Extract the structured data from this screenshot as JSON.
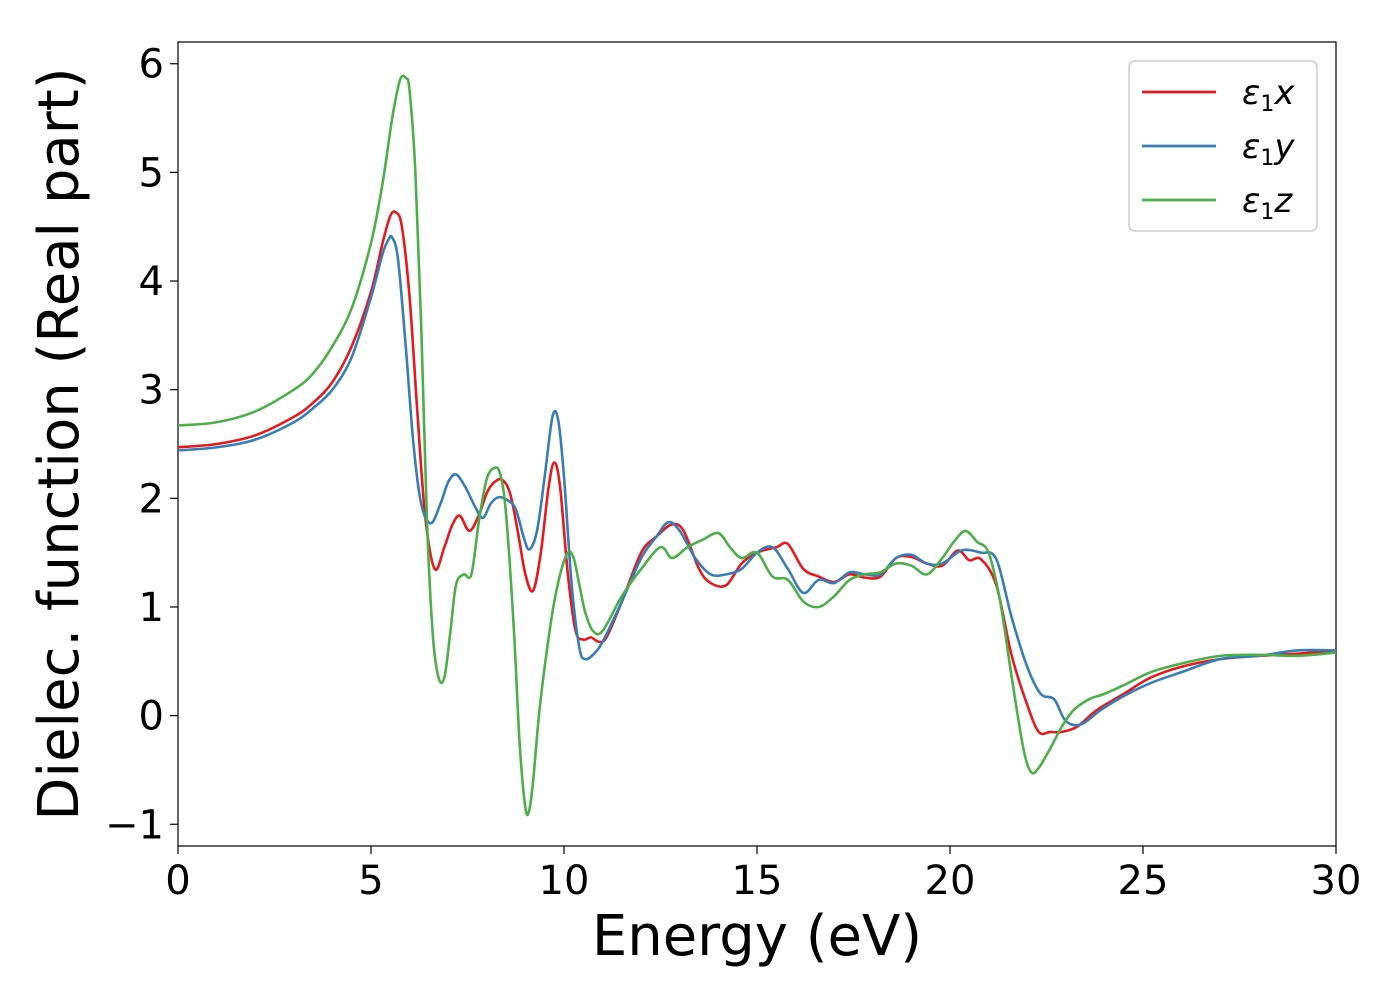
{
  "chart_data": {
    "type": "line",
    "title": "",
    "xlabel": "Energy (eV)",
    "ylabel": "Dielec. function (Real part)",
    "xlim": [
      0,
      30
    ],
    "ylim": [
      -1.2,
      6.2
    ],
    "grid": false,
    "legend_position": "top-right",
    "xticks": [
      0,
      5,
      10,
      15,
      20,
      25,
      30
    ],
    "xtick_labels": [
      "0",
      "5",
      "10",
      "15",
      "20",
      "25",
      "30"
    ],
    "yticks": [
      -1,
      0,
      1,
      2,
      3,
      4,
      5,
      6
    ],
    "ytick_labels": [
      "−1",
      "0",
      "1",
      "2",
      "3",
      "4",
      "5",
      "6"
    ],
    "series": [
      {
        "name": "ε₁x",
        "symbol": "ε",
        "sub": "1",
        "suffix": "x",
        "color": "#e41a1c",
        "x": [
          0,
          1,
          2,
          3,
          3.5,
          4,
          4.5,
          5,
          5.3,
          5.5,
          5.65,
          5.8,
          6.0,
          6.2,
          6.4,
          6.65,
          6.9,
          7.1,
          7.3,
          7.55,
          7.8,
          8.0,
          8.2,
          8.4,
          8.6,
          8.8,
          9.0,
          9.2,
          9.4,
          9.6,
          9.75,
          9.9,
          10.1,
          10.3,
          10.5,
          10.7,
          10.9,
          11.1,
          11.5,
          12.0,
          12.4,
          12.8,
          13.1,
          13.5,
          13.8,
          14.2,
          14.6,
          15.0,
          15.5,
          15.8,
          16.2,
          16.6,
          17.0,
          17.4,
          17.8,
          18.2,
          18.6,
          19.0,
          19.4,
          19.8,
          20.2,
          20.5,
          20.8,
          21.2,
          21.6,
          22.0,
          22.3,
          22.6,
          22.9,
          23.3,
          23.8,
          24.5,
          25.2,
          26.0,
          27.0,
          28.0,
          29.0,
          30.0
        ],
        "values": [
          2.47,
          2.5,
          2.58,
          2.75,
          2.88,
          3.07,
          3.4,
          3.9,
          4.35,
          4.6,
          4.63,
          4.5,
          3.85,
          2.8,
          1.85,
          1.35,
          1.55,
          1.75,
          1.84,
          1.7,
          1.85,
          2.05,
          2.15,
          2.17,
          2.05,
          1.7,
          1.3,
          1.15,
          1.5,
          2.1,
          2.33,
          2.1,
          1.3,
          0.78,
          0.7,
          0.72,
          0.68,
          0.72,
          1.05,
          1.5,
          1.65,
          1.76,
          1.7,
          1.35,
          1.22,
          1.2,
          1.4,
          1.5,
          1.55,
          1.58,
          1.35,
          1.28,
          1.23,
          1.3,
          1.27,
          1.28,
          1.45,
          1.46,
          1.4,
          1.38,
          1.52,
          1.43,
          1.44,
          1.2,
          0.55,
          0.1,
          -0.15,
          -0.15,
          -0.15,
          -0.1,
          0.05,
          0.2,
          0.35,
          0.45,
          0.52,
          0.55,
          0.57,
          0.6
        ]
      },
      {
        "name": "ε₁y",
        "symbol": "ε",
        "sub": "1",
        "suffix": "y",
        "color": "#377eb8",
        "x": [
          0,
          1,
          2,
          3,
          3.5,
          4,
          4.5,
          5,
          5.3,
          5.45,
          5.55,
          5.7,
          5.9,
          6.1,
          6.3,
          6.55,
          6.8,
          7.0,
          7.2,
          7.45,
          7.7,
          7.9,
          8.1,
          8.3,
          8.55,
          8.75,
          8.95,
          9.1,
          9.3,
          9.5,
          9.7,
          9.85,
          10.0,
          10.2,
          10.4,
          10.55,
          10.75,
          11.0,
          11.5,
          12.0,
          12.4,
          12.7,
          13.0,
          13.4,
          13.8,
          14.2,
          14.6,
          15.0,
          15.4,
          15.8,
          16.2,
          16.6,
          17.0,
          17.4,
          17.8,
          18.2,
          18.6,
          19.0,
          19.4,
          19.8,
          20.3,
          20.8,
          21.2,
          21.6,
          22.0,
          22.35,
          22.7,
          23.0,
          23.4,
          23.9,
          24.5,
          25.2,
          26.0,
          27.0,
          28.0,
          29.0,
          30.0
        ],
        "values": [
          2.44,
          2.47,
          2.54,
          2.7,
          2.83,
          3.0,
          3.3,
          3.85,
          4.25,
          4.38,
          4.4,
          4.2,
          3.4,
          2.5,
          1.95,
          1.77,
          1.95,
          2.15,
          2.22,
          2.1,
          1.92,
          1.82,
          1.95,
          2.01,
          1.98,
          1.9,
          1.65,
          1.53,
          1.7,
          2.2,
          2.75,
          2.72,
          2.2,
          1.2,
          0.62,
          0.52,
          0.56,
          0.68,
          1.05,
          1.45,
          1.65,
          1.78,
          1.7,
          1.45,
          1.3,
          1.3,
          1.35,
          1.5,
          1.55,
          1.35,
          1.13,
          1.25,
          1.22,
          1.32,
          1.3,
          1.3,
          1.45,
          1.48,
          1.4,
          1.4,
          1.52,
          1.5,
          1.44,
          0.9,
          0.45,
          0.2,
          0.15,
          -0.05,
          -0.08,
          0.05,
          0.18,
          0.3,
          0.4,
          0.52,
          0.55,
          0.6,
          0.6
        ]
      },
      {
        "name": "ε₁z",
        "symbol": "ε",
        "sub": "1",
        "suffix": "z",
        "color": "#4daf4a",
        "x": [
          0,
          1,
          2,
          3,
          3.5,
          4,
          4.5,
          5,
          5.3,
          5.55,
          5.75,
          5.9,
          6.0,
          6.15,
          6.3,
          6.45,
          6.6,
          6.75,
          6.9,
          7.05,
          7.2,
          7.4,
          7.6,
          7.8,
          8.0,
          8.2,
          8.35,
          8.5,
          8.7,
          8.85,
          9.0,
          9.1,
          9.2,
          9.35,
          9.5,
          9.7,
          9.9,
          10.1,
          10.25,
          10.4,
          10.55,
          10.75,
          11.0,
          11.5,
          12.0,
          12.5,
          12.8,
          13.2,
          13.6,
          14.0,
          14.3,
          14.6,
          15.0,
          15.4,
          15.8,
          16.2,
          16.6,
          17.0,
          17.4,
          17.8,
          18.2,
          18.6,
          19.0,
          19.4,
          19.8,
          20.1,
          20.4,
          20.7,
          21.0,
          21.3,
          21.6,
          21.9,
          22.1,
          22.3,
          22.6,
          22.9,
          23.2,
          23.6,
          24.0,
          24.5,
          25.2,
          26.0,
          27.0,
          28.0,
          29.0,
          30.0
        ],
        "values": [
          2.67,
          2.7,
          2.8,
          3.0,
          3.15,
          3.4,
          3.75,
          4.35,
          4.9,
          5.5,
          5.85,
          5.87,
          5.75,
          5.0,
          3.6,
          1.8,
          0.75,
          0.35,
          0.35,
          0.75,
          1.2,
          1.3,
          1.3,
          1.8,
          2.18,
          2.28,
          2.22,
          1.85,
          0.8,
          -0.25,
          -0.85,
          -0.87,
          -0.6,
          0.0,
          0.45,
          0.95,
          1.3,
          1.5,
          1.45,
          1.2,
          0.95,
          0.78,
          0.78,
          1.1,
          1.35,
          1.55,
          1.45,
          1.55,
          1.62,
          1.68,
          1.55,
          1.45,
          1.5,
          1.28,
          1.25,
          1.05,
          1.0,
          1.1,
          1.25,
          1.3,
          1.32,
          1.4,
          1.38,
          1.3,
          1.45,
          1.6,
          1.7,
          1.6,
          1.5,
          1.05,
          0.35,
          -0.3,
          -0.52,
          -0.48,
          -0.3,
          -0.1,
          0.05,
          0.15,
          0.2,
          0.28,
          0.4,
          0.48,
          0.55,
          0.56,
          0.55,
          0.58
        ]
      }
    ]
  }
}
